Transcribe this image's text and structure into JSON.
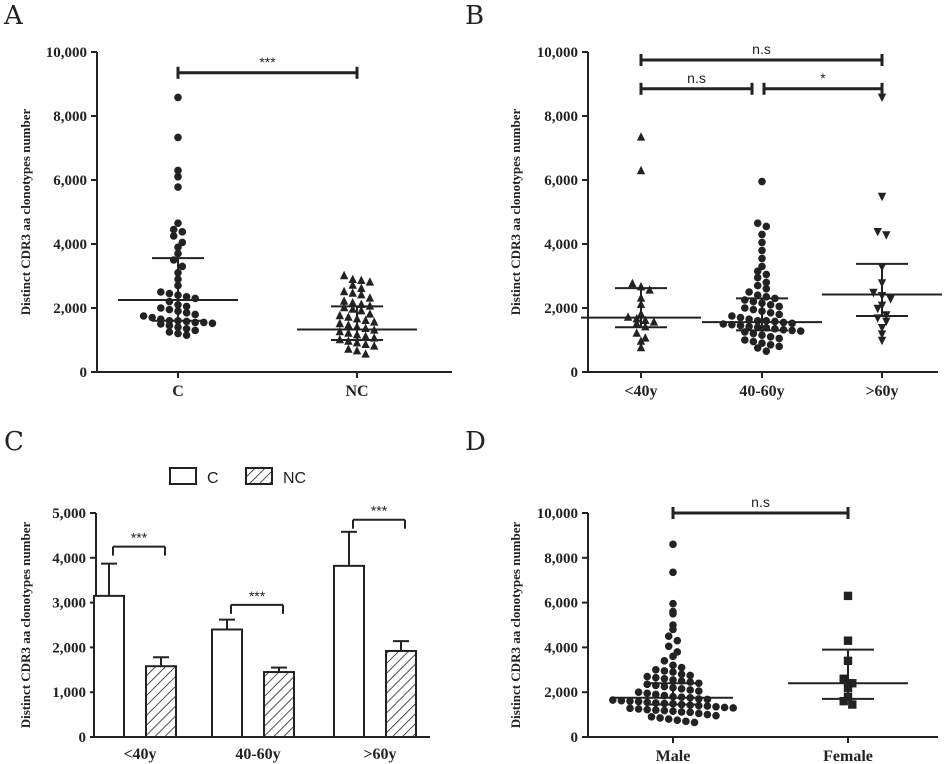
{
  "chart_data": [
    {
      "panel": "A",
      "type": "scatter",
      "ylabel": "Distinct CDR3 aa clonotypes number",
      "ylim": [
        0,
        10000
      ],
      "yticks": [
        "0",
        "2,000",
        "4,000",
        "6,000",
        "8,000",
        "10,000"
      ],
      "categories": [
        "C",
        "NC"
      ],
      "markers": [
        "circle",
        "triangle-up"
      ],
      "points": [
        [
          8580,
          7330,
          6300,
          6100,
          5780,
          4650,
          4450,
          4380,
          4250,
          4050,
          3900,
          3700,
          3500,
          3300,
          3100,
          2900,
          2700,
          2500,
          2450,
          2400,
          2350,
          2300,
          2200,
          2100,
          2050,
          2000,
          1950,
          1900,
          1850,
          1800,
          1750,
          1700,
          1650,
          1600,
          1600,
          1580,
          1550,
          1550,
          1520,
          1500,
          1450,
          1400,
          1350,
          1300,
          1250,
          1200,
          1150
        ],
        [
          3000,
          2880,
          2850,
          2800,
          2700,
          2600,
          2500,
          2450,
          2400,
          2300,
          2200,
          2150,
          2100,
          2050,
          2000,
          1950,
          1900,
          1800,
          1750,
          1700,
          1650,
          1600,
          1550,
          1500,
          1450,
          1400,
          1350,
          1300,
          1250,
          1200,
          1150,
          1100,
          1050,
          1000,
          950,
          900,
          850,
          800,
          700,
          650,
          550
        ]
      ],
      "median": [
        2250,
        1330
      ],
      "error": [
        [
          1600,
          3560
        ],
        [
          1000,
          2050
        ]
      ],
      "significance": [
        {
          "from": 0,
          "to": 1,
          "label": "***",
          "y": 9350
        }
      ]
    },
    {
      "panel": "B",
      "type": "scatter",
      "ylabel": "Distinct CDR3 aa clonotypes number",
      "ylim": [
        0,
        10000
      ],
      "yticks": [
        "0",
        "2,000",
        "4,000",
        "6,000",
        "8,000",
        "10,000"
      ],
      "categories": [
        "<40y",
        "40-60y",
        ">60y"
      ],
      "markers": [
        "triangle-up",
        "circle",
        "triangle-down"
      ],
      "points": [
        [
          7330,
          6280,
          2750,
          2650,
          2550,
          2300,
          2100,
          1800,
          1700,
          1650,
          1600,
          1550,
          1500,
          1400,
          1200,
          1050,
          950,
          750
        ],
        [
          5950,
          4650,
          4550,
          4300,
          4050,
          3800,
          3550,
          3300,
          3150,
          3050,
          2950,
          2800,
          2700,
          2600,
          2500,
          2400,
          2350,
          2300,
          2250,
          2200,
          2150,
          2100,
          2050,
          2000,
          1950,
          1900,
          1850,
          1800,
          1750,
          1700,
          1650,
          1600,
          1600,
          1580,
          1550,
          1520,
          1500,
          1480,
          1450,
          1420,
          1400,
          1380,
          1350,
          1320,
          1300,
          1280,
          1250,
          1200,
          1150,
          1100,
          1050,
          1000,
          950,
          900,
          850,
          800,
          750,
          650
        ],
        [
          8600,
          5500,
          4400,
          4300,
          3300,
          2800,
          2500,
          2400,
          2300,
          2100,
          2000,
          1800,
          1700,
          1600,
          1400,
          1200,
          1000
        ]
      ],
      "median": [
        1700,
        1560,
        2420
      ],
      "error": [
        [
          1400,
          2620
        ],
        [
          1300,
          2300
        ],
        [
          1750,
          3380
        ]
      ],
      "significance": [
        {
          "from": 0,
          "to": 2,
          "label": "n.s",
          "y": 9750
        },
        {
          "from": 0,
          "to": 1,
          "label": "n.s",
          "y": 8850
        },
        {
          "from": 1,
          "to": 2,
          "label": "*",
          "y": 8850
        }
      ]
    },
    {
      "panel": "C",
      "type": "bar",
      "ylabel": "Distinct CDR3 aa clonotypes number",
      "ylim": [
        0,
        5000
      ],
      "yticks": [
        "0",
        "1,000",
        "2,000",
        "3,000",
        "4,000",
        "5,000"
      ],
      "categories": [
        "<40y",
        "40-60y",
        ">60y"
      ],
      "series": [
        {
          "name": "C",
          "values": [
            3150,
            2400,
            3820
          ],
          "errors": [
            720,
            220,
            760
          ],
          "fill": "open"
        },
        {
          "name": "NC",
          "values": [
            1580,
            1450,
            1920
          ],
          "errors": [
            200,
            100,
            220
          ],
          "fill": "hatched"
        }
      ],
      "significance": [
        {
          "category": 0,
          "label": "***",
          "y": 4250
        },
        {
          "category": 1,
          "label": "***",
          "y": 2950
        },
        {
          "category": 2,
          "label": "***",
          "y": 4850
        }
      ],
      "legend": "top-left"
    },
    {
      "panel": "D",
      "type": "scatter",
      "ylabel": "Distinct CDR3 aa clonotypes number",
      "ylim": [
        0,
        10000
      ],
      "yticks": [
        "0",
        "2,000",
        "4,000",
        "6,000",
        "8,000",
        "10,000"
      ],
      "categories": [
        "Male",
        "Female"
      ],
      "markers": [
        "circle",
        "square"
      ],
      "points": [
        [
          8600,
          7350,
          5950,
          5600,
          5500,
          5000,
          4800,
          4500,
          4300,
          4050,
          3800,
          3600,
          3400,
          3200,
          3100,
          3000,
          2950,
          2900,
          2800,
          2750,
          2700,
          2650,
          2600,
          2550,
          2500,
          2450,
          2400,
          2350,
          2300,
          2250,
          2200,
          2150,
          2100,
          2050,
          2000,
          1950,
          1900,
          1850,
          1800,
          1780,
          1750,
          1700,
          1680,
          1650,
          1620,
          1600,
          1580,
          1550,
          1520,
          1500,
          1480,
          1450,
          1420,
          1400,
          1380,
          1350,
          1320,
          1300,
          1280,
          1250,
          1220,
          1200,
          1180,
          1150,
          1120,
          1100,
          1050,
          1000,
          950,
          900,
          850,
          800,
          750,
          700,
          650
        ],
        [
          6300,
          4300,
          3400,
          2600,
          2400,
          2200,
          1800,
          1600,
          1450
        ]
      ],
      "median": [
        1750,
        2400
      ],
      "error": [
        [
          1450,
          2400
        ],
        [
          1700,
          3900
        ]
      ],
      "significance": [
        {
          "from": 0,
          "to": 1,
          "label": "n.s",
          "y": 10000
        }
      ]
    }
  ]
}
